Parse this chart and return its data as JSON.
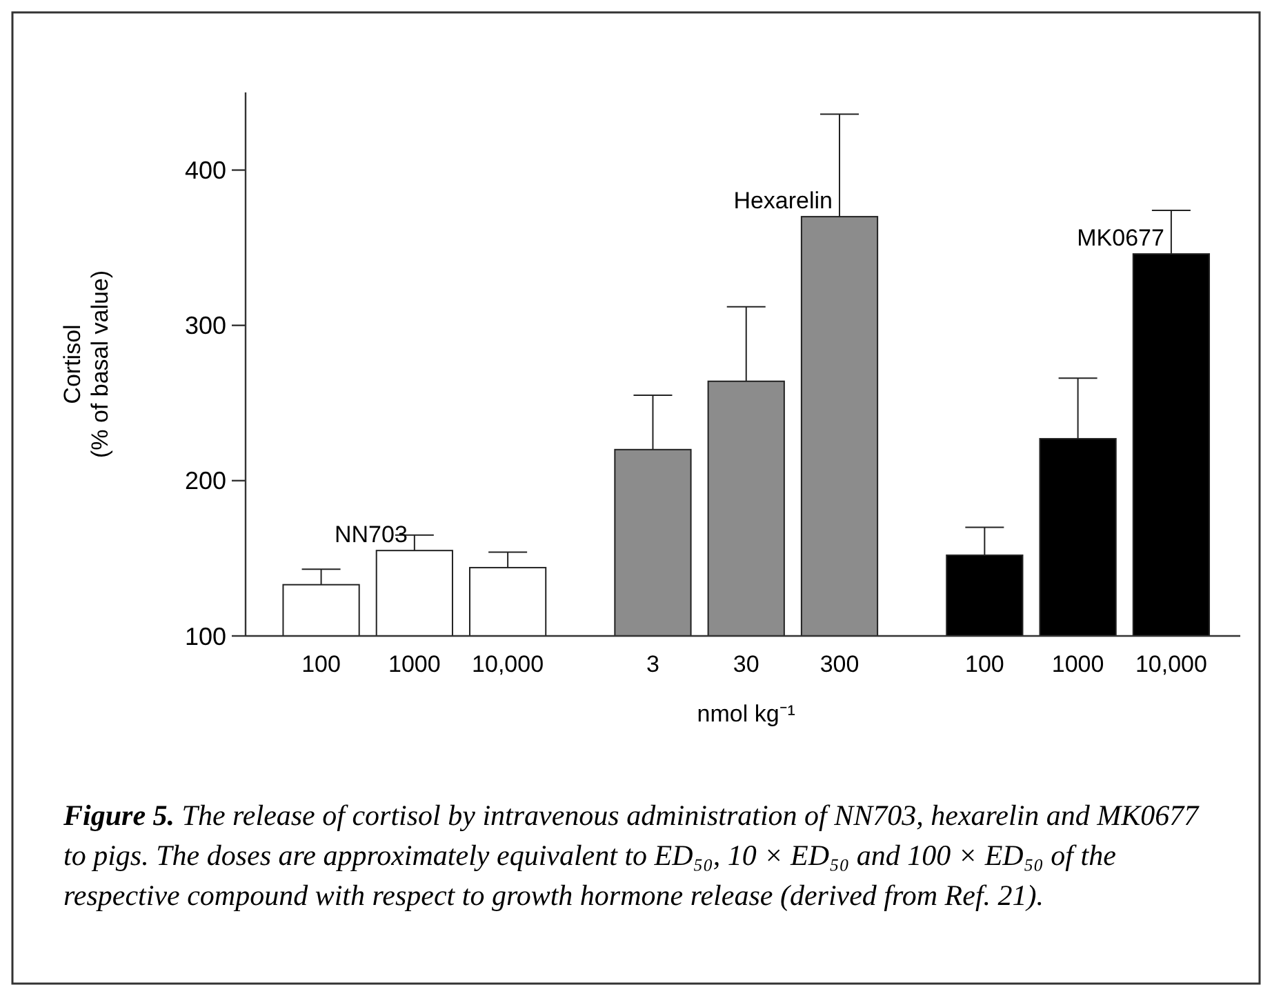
{
  "chart_data": {
    "type": "bar",
    "xlabel": "nmol kg⁻¹",
    "ylabel": "Cortisol\n(% of basal value)",
    "categories": [
      "100",
      "1000",
      "10,000",
      "3",
      "30",
      "300",
      "100",
      "1000",
      "10,000"
    ],
    "series": [
      {
        "name": "NN703",
        "color": "#ffffff",
        "values": [
          133,
          155,
          144,
          null,
          null,
          null,
          null,
          null,
          null
        ],
        "errors": [
          [
            133,
            143
          ],
          [
            155,
            165
          ],
          [
            144,
            154
          ],
          null,
          null,
          null,
          null,
          null,
          null
        ]
      },
      {
        "name": "Hexarelin",
        "color": "#8c8c8c",
        "values": [
          null,
          null,
          null,
          220,
          264,
          370,
          null,
          null,
          null
        ],
        "errors": [
          null,
          null,
          null,
          [
            220,
            255
          ],
          [
            264,
            312
          ],
          [
            370,
            436
          ],
          null,
          null,
          null
        ]
      },
      {
        "name": "MK0677",
        "color": "#000000",
        "values": [
          null,
          null,
          null,
          null,
          null,
          null,
          152,
          227,
          346
        ],
        "errors": [
          null,
          null,
          null,
          null,
          null,
          null,
          [
            152,
            170
          ],
          [
            227,
            266
          ],
          [
            346,
            374
          ]
        ]
      }
    ],
    "ylim": [
      100,
      450
    ],
    "yticks": [
      100,
      200,
      300,
      400
    ],
    "grid": false,
    "annotations": [
      "Figure 5. The release of cortisol by intravenous administration of NN703, hexarelin and MK0677 to pigs. The doses are approximately equivalent to ED₅₀, 10 × ED₅₀ and 100 × ED₅₀ of the respective compound with respect to growth hormone release (derived from Ref. 21)."
    ]
  }
}
